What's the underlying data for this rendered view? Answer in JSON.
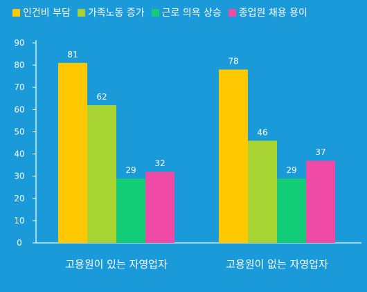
{
  "chart_data": {
    "type": "bar",
    "categories": [
      "고용원이 있는 자영업자",
      "고용원이 없는 자영업자"
    ],
    "series": [
      {
        "name": "인건비 부담",
        "values": [
          81,
          78
        ],
        "color": "#ffc800"
      },
      {
        "name": "가족노동 증가",
        "values": [
          62,
          46
        ],
        "color": "#a8d433"
      },
      {
        "name": "근로 의욕 상승",
        "values": [
          29,
          29
        ],
        "color": "#12cc78"
      },
      {
        "name": "종업원 채용 용이",
        "values": [
          32,
          37
        ],
        "color": "#ef4aa6"
      }
    ],
    "yticks": [
      "0",
      "10",
      "20",
      "30",
      "40",
      "50",
      "60",
      "70",
      "80",
      "90"
    ],
    "ylim": [
      0,
      90
    ],
    "grid": false,
    "legend_position": "top"
  }
}
